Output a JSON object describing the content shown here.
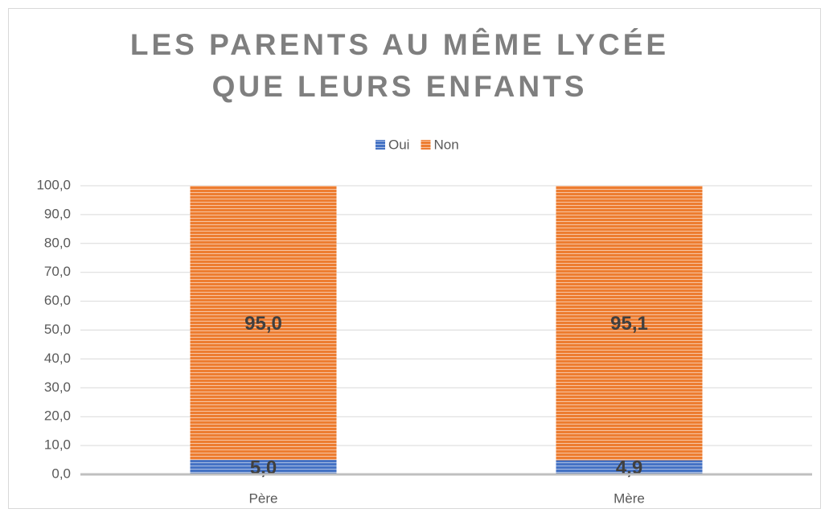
{
  "chart_data": {
    "type": "stacked_bar",
    "title": "LES PARENTS AU MÊME LYCÉE QUE LEURS ENFANTS",
    "categories": [
      "Père",
      "Mère"
    ],
    "series": [
      {
        "name": "Oui",
        "color": "#4472c4",
        "values": [
          5.0,
          4.9
        ],
        "value_labels": [
          "5,0",
          "4,9"
        ]
      },
      {
        "name": "Non",
        "color": "#ed7d31",
        "values": [
          95.0,
          95.1
        ],
        "value_labels": [
          "95,0",
          "95,1"
        ]
      }
    ],
    "ylim": [
      0,
      100
    ],
    "yticks": [
      {
        "value": 0,
        "label": "0,0"
      },
      {
        "value": 10,
        "label": "10,0"
      },
      {
        "value": 20,
        "label": "20,0"
      },
      {
        "value": 30,
        "label": "30,0"
      },
      {
        "value": 40,
        "label": "40,0"
      },
      {
        "value": 50,
        "label": "50,0"
      },
      {
        "value": 60,
        "label": "60,0"
      },
      {
        "value": 70,
        "label": "70,0"
      },
      {
        "value": 80,
        "label": "80,0"
      },
      {
        "value": 90,
        "label": "90,0"
      },
      {
        "value": 100,
        "label": "100,0"
      }
    ],
    "grid": true,
    "legend": "top"
  }
}
